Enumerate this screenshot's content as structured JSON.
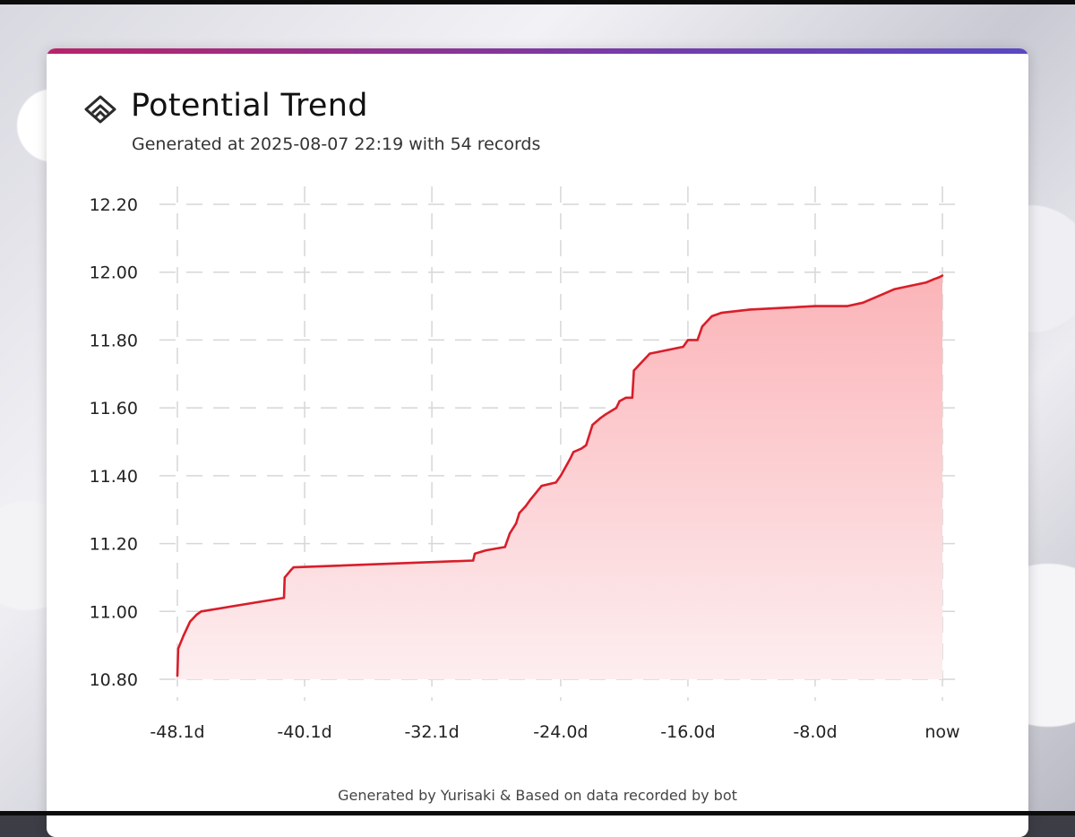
{
  "title": "Potential Trend",
  "subtitle": "Generated at 2025-08-07 22:19 with 54 records",
  "footer": "Generated by Yurisaki & Based on data recorded by bot",
  "colors": {
    "line": "#d81e2a",
    "fill_top": "#fbb4b8",
    "fill_bottom": "#fdeef0",
    "accent_start": "#b8246a",
    "accent_end": "#5a48c4"
  },
  "chart_data": {
    "type": "area",
    "title": "Potential Trend",
    "xlabel": "",
    "ylabel": "",
    "xlim": [
      -48.1,
      0
    ],
    "ylim": [
      10.8,
      12.2
    ],
    "x_ticks": [
      -48.1,
      -40.1,
      -32.1,
      -24.0,
      -16.0,
      -8.0,
      0
    ],
    "x_tick_labels": [
      "-48.1d",
      "-40.1d",
      "-32.1d",
      "-24.0d",
      "-16.0d",
      "-8.0d",
      "now"
    ],
    "y_ticks": [
      10.8,
      11.0,
      11.2,
      11.4,
      11.6,
      11.8,
      12.0,
      12.2
    ],
    "y_tick_labels": [
      "10.80",
      "11.00",
      "11.20",
      "11.40",
      "11.60",
      "11.80",
      "12.00",
      "12.20"
    ],
    "grid": true,
    "series": [
      {
        "x": [
          -48.1,
          -48.05,
          -47.7,
          -47.3,
          -46.9,
          -46.6,
          -41.4,
          -41.35,
          -41.0,
          -40.8,
          -29.5,
          -29.4,
          -28.7,
          -27.5,
          -27.2,
          -26.8,
          -26.6,
          -26.2,
          -25.9,
          -25.2,
          -24.3,
          -24.0,
          -23.4,
          -23.2,
          -22.7,
          -22.4,
          -22.0,
          -21.5,
          -21.2,
          -20.5,
          -20.3,
          -19.9,
          -19.5,
          -19.4,
          -19.0,
          -18.4,
          -16.3,
          -16.0,
          -15.8,
          -15.4,
          -15.1,
          -14.5,
          -13.9,
          -12.1,
          -8.0,
          -6.0,
          -5.0,
          -4.0,
          -3.0,
          -2.0,
          -1.0,
          -0.5,
          -0.2,
          0
        ],
        "y": [
          10.81,
          10.89,
          10.93,
          10.97,
          10.99,
          11.0,
          11.04,
          11.1,
          11.12,
          11.13,
          11.15,
          11.17,
          11.18,
          11.19,
          11.23,
          11.26,
          11.29,
          11.31,
          11.33,
          11.37,
          11.38,
          11.4,
          11.45,
          11.47,
          11.48,
          11.49,
          11.55,
          11.57,
          11.58,
          11.6,
          11.62,
          11.63,
          11.63,
          11.71,
          11.73,
          11.76,
          11.78,
          11.8,
          11.8,
          11.8,
          11.84,
          11.87,
          11.88,
          11.89,
          11.9,
          11.9,
          11.91,
          11.93,
          11.95,
          11.96,
          11.97,
          11.98,
          11.985,
          11.99
        ]
      }
    ]
  }
}
